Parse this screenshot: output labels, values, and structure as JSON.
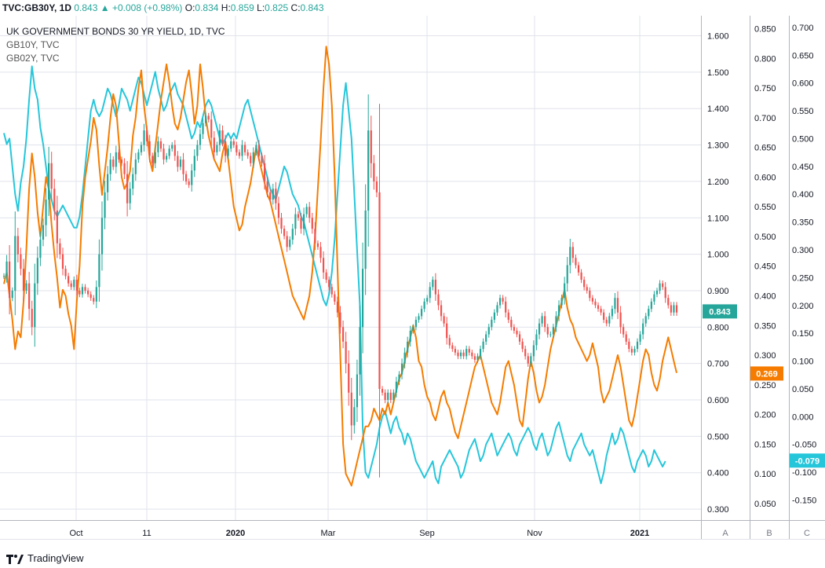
{
  "header": {
    "symbol": "TVC:GB30Y, 1D",
    "last": "0.843",
    "change": "+0.008 (+0.98%)",
    "o_label": "O:",
    "o_value": "0.834",
    "h_label": "H:",
    "h_value": "0.859",
    "l_label": "L:",
    "l_value": "0.825",
    "c_label": "C:",
    "c_value": "0.843"
  },
  "legend": {
    "main": "UK GOVERNMENT BONDS 30 YR YIELD, 1D, TVC",
    "s2": "GB10Y, TVC",
    "s3": "GB02Y, TVC"
  },
  "brand": "TradingView",
  "colors": {
    "up": "#26a69a",
    "down": "#ef5350",
    "gb10y": "#f57c00",
    "gb02y": "#26c6da",
    "grid": "#e0e3eb"
  },
  "chart_data": {
    "type": "line",
    "x_ticks": [
      "Oct",
      "11",
      "2020",
      "Mar",
      "Sep",
      "Nov",
      "2021"
    ],
    "scales": {
      "A": {
        "min": 0.27,
        "max": 1.655,
        "ticks": [
          "1.600",
          "1.500",
          "1.400",
          "1.300",
          "1.200",
          "1.100",
          "1.000",
          "0.900",
          "0.800",
          "0.700",
          "0.600",
          "0.500",
          "0.400",
          "0.300"
        ]
      },
      "B": {
        "min": 0.022,
        "max": 0.872,
        "ticks": [
          "0.850",
          "0.800",
          "0.750",
          "0.700",
          "0.650",
          "0.600",
          "0.550",
          "0.500",
          "0.450",
          "0.400",
          "0.350",
          "0.300",
          "0.250",
          "0.200",
          "0.150",
          "0.100",
          "0.050"
        ]
      },
      "C": {
        "min": -0.186,
        "max": 0.721,
        "ticks": [
          "0.700",
          "0.650",
          "0.600",
          "0.550",
          "0.500",
          "0.450",
          "0.400",
          "0.350",
          "0.300",
          "0.250",
          "0.200",
          "0.150",
          "0.100",
          "0.050",
          "0.000",
          "-0.050",
          "-0.100",
          "-0.150"
        ]
      }
    },
    "axis_buttons": [
      "A",
      "B",
      "C"
    ],
    "last_labels": {
      "gb30y": "0.843",
      "gb10y": "0.269",
      "gb02y": "-0.079"
    },
    "series": [
      {
        "name": "GB30Y",
        "scale": "A",
        "style": "candles",
        "closes": [
          0.94,
          0.98,
          0.88,
          0.9,
          1.05,
          1.0,
          0.96,
          0.9,
          0.92,
          0.85,
          0.8,
          0.92,
          0.99,
          1.04,
          1.08,
          1.15,
          1.25,
          1.18,
          1.12,
          1.03,
          1.0,
          0.96,
          0.94,
          0.92,
          0.91,
          0.93,
          0.9,
          0.89,
          0.91,
          0.9,
          0.89,
          0.88,
          0.87,
          0.91,
          1.0,
          1.1,
          1.17,
          1.22,
          1.26,
          1.24,
          1.28,
          1.26,
          1.25,
          1.22,
          1.14,
          1.18,
          1.22,
          1.26,
          1.28,
          1.3,
          1.34,
          1.31,
          1.27,
          1.25,
          1.28,
          1.31,
          1.29,
          1.26,
          1.27,
          1.29,
          1.3,
          1.27,
          1.24,
          1.26,
          1.22,
          1.2,
          1.19,
          1.23,
          1.27,
          1.3,
          1.33,
          1.36,
          1.38,
          1.37,
          1.32,
          1.28,
          1.3,
          1.34,
          1.31,
          1.27,
          1.29,
          1.31,
          1.3,
          1.28,
          1.27,
          1.3,
          1.28,
          1.27,
          1.25,
          1.28,
          1.3,
          1.27,
          1.25,
          1.2,
          1.17,
          1.15,
          1.18,
          1.14,
          1.1,
          1.07,
          1.05,
          1.02,
          1.04,
          1.07,
          1.11,
          1.1,
          1.07,
          1.11,
          1.13,
          1.1,
          1.07,
          1.03,
          1.02,
          0.99,
          0.95,
          0.93,
          0.91,
          0.89,
          0.87,
          0.84,
          0.8,
          0.76,
          0.7,
          0.62,
          0.53,
          0.58,
          0.67,
          0.8,
          0.96,
          1.12,
          1.34,
          1.25,
          1.2,
          1.17,
          0.63,
          0.62,
          0.6,
          0.62,
          0.6,
          0.62,
          0.65,
          0.67,
          0.7,
          0.73,
          0.76,
          0.79,
          0.8,
          0.82,
          0.83,
          0.85,
          0.87,
          0.88,
          0.91,
          0.93,
          0.89,
          0.86,
          0.83,
          0.81,
          0.77,
          0.75,
          0.74,
          0.73,
          0.72,
          0.73,
          0.72,
          0.74,
          0.73,
          0.72,
          0.71,
          0.72,
          0.74,
          0.76,
          0.78,
          0.8,
          0.82,
          0.84,
          0.86,
          0.88,
          0.87,
          0.84,
          0.82,
          0.8,
          0.79,
          0.78,
          0.76,
          0.74,
          0.72,
          0.7,
          0.72,
          0.75,
          0.78,
          0.81,
          0.83,
          0.8,
          0.78,
          0.78,
          0.8,
          0.83,
          0.86,
          0.88,
          0.92,
          0.97,
          1.02,
          0.99,
          0.97,
          0.95,
          0.93,
          0.91,
          0.9,
          0.88,
          0.87,
          0.86,
          0.85,
          0.84,
          0.82,
          0.81,
          0.83,
          0.85,
          0.88,
          0.84,
          0.8,
          0.78,
          0.76,
          0.74,
          0.73,
          0.74,
          0.76,
          0.78,
          0.81,
          0.83,
          0.85,
          0.87,
          0.89,
          0.9,
          0.92,
          0.91,
          0.88,
          0.86,
          0.84,
          0.86,
          0.84
        ]
      },
      {
        "name": "GB10Y",
        "scale": "B",
        "style": "line",
        "values": [
          0.42,
          0.44,
          0.4,
          0.36,
          0.31,
          0.34,
          0.33,
          0.39,
          0.48,
          0.58,
          0.64,
          0.6,
          0.54,
          0.5,
          0.55,
          0.6,
          0.58,
          0.52,
          0.47,
          0.43,
          0.38,
          0.41,
          0.4,
          0.37,
          0.35,
          0.31,
          0.39,
          0.45,
          0.55,
          0.6,
          0.63,
          0.66,
          0.7,
          0.68,
          0.62,
          0.57,
          0.61,
          0.65,
          0.7,
          0.74,
          0.72,
          0.66,
          0.6,
          0.58,
          0.59,
          0.61,
          0.67,
          0.7,
          0.75,
          0.78,
          0.72,
          0.68,
          0.63,
          0.61,
          0.65,
          0.69,
          0.73,
          0.76,
          0.79,
          0.76,
          0.72,
          0.69,
          0.68,
          0.7,
          0.73,
          0.76,
          0.78,
          0.74,
          0.69,
          0.72,
          0.79,
          0.75,
          0.7,
          0.67,
          0.65,
          0.63,
          0.62,
          0.61,
          0.64,
          0.66,
          0.63,
          0.59,
          0.55,
          0.53,
          0.51,
          0.52,
          0.55,
          0.57,
          0.59,
          0.62,
          0.65,
          0.63,
          0.61,
          0.59,
          0.57,
          0.56,
          0.54,
          0.52,
          0.5,
          0.48,
          0.46,
          0.44,
          0.42,
          0.4,
          0.39,
          0.38,
          0.37,
          0.36,
          0.38,
          0.4,
          0.44,
          0.5,
          0.58,
          0.66,
          0.75,
          0.82,
          0.79,
          0.72,
          0.6,
          0.45,
          0.3,
          0.15,
          0.1,
          0.09,
          0.08,
          0.1,
          0.12,
          0.14,
          0.16,
          0.18,
          0.18,
          0.19,
          0.21,
          0.2,
          0.19,
          0.21,
          0.2,
          0.22,
          0.2,
          0.22,
          0.24,
          0.26,
          0.27,
          0.29,
          0.31,
          0.33,
          0.35,
          0.33,
          0.29,
          0.28,
          0.25,
          0.23,
          0.22,
          0.2,
          0.19,
          0.21,
          0.23,
          0.24,
          0.22,
          0.21,
          0.19,
          0.17,
          0.16,
          0.18,
          0.2,
          0.22,
          0.24,
          0.26,
          0.28,
          0.29,
          0.3,
          0.28,
          0.26,
          0.24,
          0.22,
          0.21,
          0.2,
          0.22,
          0.25,
          0.28,
          0.29,
          0.27,
          0.25,
          0.22,
          0.19,
          0.18,
          0.22,
          0.26,
          0.29,
          0.27,
          0.24,
          0.22,
          0.23,
          0.25,
          0.28,
          0.31,
          0.33,
          0.35,
          0.37,
          0.39,
          0.41,
          0.38,
          0.36,
          0.35,
          0.33,
          0.32,
          0.31,
          0.3,
          0.29,
          0.3,
          0.32,
          0.3,
          0.28,
          0.24,
          0.22,
          0.23,
          0.24,
          0.26,
          0.28,
          0.3,
          0.28,
          0.25,
          0.22,
          0.19,
          0.18,
          0.2,
          0.23,
          0.26,
          0.29,
          0.31,
          0.3,
          0.27,
          0.25,
          0.24,
          0.26,
          0.29,
          0.31,
          0.33,
          0.31,
          0.29,
          0.27
        ]
      },
      {
        "name": "GB02Y",
        "scale": "C",
        "style": "line",
        "values": [
          0.51,
          0.49,
          0.5,
          0.45,
          0.4,
          0.37,
          0.42,
          0.45,
          0.5,
          0.57,
          0.63,
          0.59,
          0.57,
          0.52,
          0.49,
          0.45,
          0.41,
          0.39,
          0.37,
          0.36,
          0.37,
          0.38,
          0.37,
          0.36,
          0.35,
          0.34,
          0.34,
          0.36,
          0.4,
          0.45,
          0.5,
          0.55,
          0.57,
          0.55,
          0.54,
          0.55,
          0.57,
          0.59,
          0.58,
          0.56,
          0.54,
          0.56,
          0.59,
          0.58,
          0.57,
          0.55,
          0.57,
          0.59,
          0.61,
          0.6,
          0.58,
          0.56,
          0.58,
          0.6,
          0.62,
          0.59,
          0.57,
          0.55,
          0.56,
          0.58,
          0.59,
          0.6,
          0.58,
          0.57,
          0.56,
          0.54,
          0.52,
          0.5,
          0.51,
          0.53,
          0.52,
          0.54,
          0.56,
          0.57,
          0.56,
          0.54,
          0.52,
          0.5,
          0.49,
          0.5,
          0.51,
          0.5,
          0.51,
          0.5,
          0.52,
          0.54,
          0.56,
          0.57,
          0.55,
          0.53,
          0.51,
          0.49,
          0.47,
          0.45,
          0.43,
          0.41,
          0.4,
          0.39,
          0.41,
          0.43,
          0.45,
          0.44,
          0.42,
          0.4,
          0.39,
          0.38,
          0.36,
          0.35,
          0.33,
          0.31,
          0.29,
          0.27,
          0.25,
          0.23,
          0.21,
          0.2,
          0.22,
          0.26,
          0.32,
          0.4,
          0.48,
          0.56,
          0.6,
          0.55,
          0.5,
          0.4,
          0.3,
          0.2,
          -0.02,
          -0.1,
          -0.11,
          -0.09,
          -0.07,
          -0.05,
          -0.02,
          0.0,
          0.01,
          -0.01,
          -0.03,
          -0.01,
          0.0,
          -0.02,
          -0.03,
          -0.05,
          -0.03,
          -0.04,
          -0.06,
          -0.08,
          -0.09,
          -0.1,
          -0.11,
          -0.1,
          -0.09,
          -0.08,
          -0.11,
          -0.12,
          -0.09,
          -0.08,
          -0.07,
          -0.06,
          -0.07,
          -0.08,
          -0.09,
          -0.11,
          -0.1,
          -0.08,
          -0.06,
          -0.05,
          -0.04,
          -0.06,
          -0.08,
          -0.07,
          -0.05,
          -0.04,
          -0.03,
          -0.05,
          -0.07,
          -0.06,
          -0.05,
          -0.04,
          -0.03,
          -0.04,
          -0.06,
          -0.07,
          -0.05,
          -0.04,
          -0.03,
          -0.02,
          -0.03,
          -0.05,
          -0.06,
          -0.04,
          -0.03,
          -0.05,
          -0.07,
          -0.06,
          -0.04,
          -0.02,
          -0.01,
          -0.03,
          -0.05,
          -0.07,
          -0.08,
          -0.06,
          -0.05,
          -0.04,
          -0.03,
          -0.05,
          -0.06,
          -0.07,
          -0.06,
          -0.08,
          -0.1,
          -0.12,
          -0.1,
          -0.07,
          -0.05,
          -0.03,
          -0.05,
          -0.04,
          -0.02,
          -0.03,
          -0.05,
          -0.07,
          -0.09,
          -0.1,
          -0.08,
          -0.07,
          -0.06,
          -0.07,
          -0.09,
          -0.08,
          -0.06,
          -0.07,
          -0.08,
          -0.09,
          -0.08
        ]
      }
    ]
  }
}
